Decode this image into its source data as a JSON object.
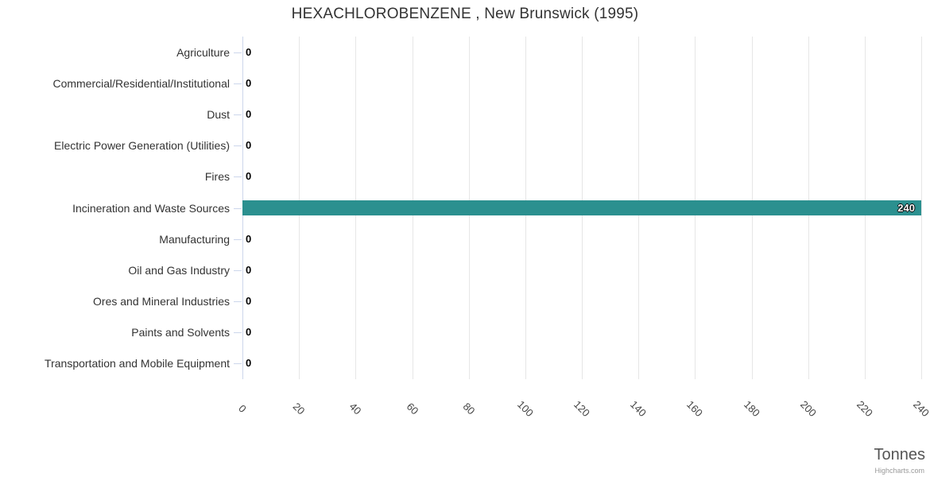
{
  "chart_data": {
    "type": "bar",
    "orientation": "horizontal",
    "title": "HEXACHLOROBENZENE , New Brunswick (1995)",
    "categories": [
      "Agriculture",
      "Commercial/Residential/Institutional",
      "Dust",
      "Electric Power Generation (Utilities)",
      "Fires",
      "Incineration and Waste Sources",
      "Manufacturing",
      "Oil and Gas Industry",
      "Ores and Mineral Industries",
      "Paints and Solvents",
      "Transportation and Mobile Equipment"
    ],
    "values": [
      0,
      0,
      0,
      0,
      0,
      240,
      0,
      0,
      0,
      0,
      0
    ],
    "data_labels": [
      0,
      0,
      0,
      0,
      0,
      240,
      0,
      0,
      0,
      0,
      0
    ],
    "xlabel": "Tonnes",
    "ylabel": "",
    "xlim": [
      0,
      240
    ],
    "xticks": [
      0,
      20,
      40,
      60,
      80,
      100,
      120,
      140,
      160,
      180,
      200,
      220,
      240
    ],
    "xtick_rotation": 45,
    "grid": true,
    "legend": false,
    "credit": "Highcharts.com"
  },
  "colors": {
    "bar": "#2b908f",
    "axis_line": "#ccd6eb",
    "gridline": "#e6e6e6",
    "title": "#333333",
    "category_label": "#333333",
    "tick_label": "#444444",
    "datalabel_zero": "#000000",
    "datalabel_bar": "#ffffff",
    "axis_title": "#555555",
    "credit": "#999999"
  }
}
